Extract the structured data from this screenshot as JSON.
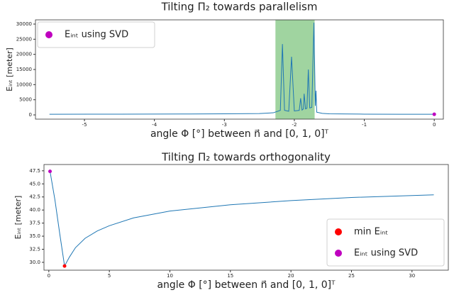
{
  "chart_data": [
    {
      "type": "line",
      "title": "Tilting Π₂ towards parallelism",
      "xlabel": "angle Φ [°] between n⃗ and [0, 1, 0]ᵀ",
      "ylabel": "Eᵢₙₜ  [meter]",
      "xlim": [
        -5.7,
        0.13
      ],
      "ylim": [
        -1400,
        31400
      ],
      "xticks": [
        -5,
        -4,
        -3,
        -2,
        -1,
        0
      ],
      "yticks": [
        0,
        5000,
        10000,
        15000,
        20000,
        25000,
        30000
      ],
      "span": {
        "xlim": [
          -2.27,
          -1.71
        ],
        "color": "#8fcc8f"
      },
      "legend": "upper left",
      "series": [
        {
          "color": "#1f77b4",
          "style": "line",
          "x": [
            -5.5,
            -4.5,
            -3.5,
            -3,
            -2.5,
            -2.3,
            -2.2,
            -2.17,
            -2.14,
            -2.08,
            -2.04,
            -2.0,
            -1.93,
            -1.91,
            -1.89,
            -1.87,
            -1.86,
            -1.84,
            -1.82,
            -1.8,
            -1.78,
            -1.75,
            -1.72,
            -1.7,
            -1.69,
            -1.68,
            -1.6,
            -1.5,
            -1,
            -0.5,
            0
          ],
          "values": [
            200,
            250,
            300,
            350,
            450,
            700,
            1500,
            23400,
            1500,
            1200,
            19200,
            1300,
            1500,
            5500,
            1600,
            2000,
            7000,
            2000,
            2200,
            15000,
            2300,
            2500,
            30500,
            3000,
            8000,
            900,
            500,
            350,
            250,
            200,
            200
          ]
        },
        {
          "name": "Eᵢₙₜ   using SVD",
          "color": "#bf00bf",
          "style": "point",
          "x": [
            0
          ],
          "values": [
            200
          ]
        }
      ]
    },
    {
      "type": "line",
      "title": "Tilting Π₂ towards orthogonality",
      "xlabel": "angle Φ [°] between n⃗ and [0, 1, 0]ᵀ",
      "ylabel": "Eᵢₙₜ  [meter]",
      "xlim": [
        -0.4,
        33
      ],
      "ylim": [
        28.5,
        48.7
      ],
      "xticks": [
        0,
        5,
        10,
        15,
        20,
        25,
        30
      ],
      "yticks": [
        {
          "value": 30,
          "label": "30.0"
        },
        32.5,
        {
          "value": 35,
          "label": "35.0"
        },
        37.5,
        {
          "value": 40,
          "label": "40.0"
        },
        42.5,
        {
          "value": 45,
          "label": "45.0"
        },
        47.5
      ],
      "legend": "lower right",
      "series": [
        {
          "color": "#1f77b4",
          "style": "line",
          "x": [
            0.1,
            0.5,
            0.9,
            1.3,
            1.7,
            2.2,
            3,
            4,
            5,
            7,
            10,
            15,
            20,
            25,
            31.8
          ],
          "values": [
            47.4,
            42,
            35.5,
            29.3,
            31,
            32.8,
            34.6,
            36,
            37,
            38.5,
            39.8,
            41,
            41.8,
            42.4,
            42.9
          ]
        },
        {
          "name": "min Eᵢₙₜ",
          "color": "#ff0000",
          "style": "point",
          "x": [
            1.3
          ],
          "values": [
            29.3
          ]
        },
        {
          "name": "Eᵢₙₜ   using SVD",
          "color": "#bf00bf",
          "style": "point",
          "x": [
            0.1
          ],
          "values": [
            47.4
          ]
        }
      ]
    }
  ]
}
